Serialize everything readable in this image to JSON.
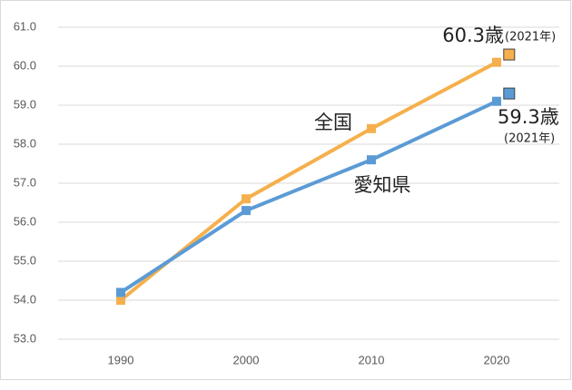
{
  "chart_data": {
    "type": "line",
    "x": [
      1990,
      2000,
      2010,
      2020
    ],
    "xlim": [
      1985,
      2025
    ],
    "xticks": [
      1990,
      2000,
      2010,
      2020
    ],
    "ylim": [
      53,
      61
    ],
    "yticks": [
      {
        "value": 53,
        "label": "53.0"
      },
      {
        "value": 54,
        "label": "54.0"
      },
      {
        "value": 55,
        "label": "55.0"
      },
      {
        "value": 56,
        "label": "56.0"
      },
      {
        "value": 57,
        "label": "57.0"
      },
      {
        "value": 58,
        "label": "58.0"
      },
      {
        "value": 59,
        "label": "59.0"
      },
      {
        "value": 60,
        "label": "60.0"
      },
      {
        "value": 61,
        "label": "61.0"
      }
    ],
    "grid": true,
    "series": [
      {
        "name": "全国",
        "color": "#F5B04D",
        "values": [
          54.0,
          56.6,
          58.4,
          60.1
        ]
      },
      {
        "name": "愛知県",
        "color": "#5B9BD5",
        "values": [
          54.2,
          56.3,
          57.6,
          59.1
        ]
      }
    ],
    "annotations": [
      {
        "x": 2021,
        "value": 60.3,
        "label": "60.3歳",
        "note": "(2021年)",
        "color": "#F5B04D"
      },
      {
        "x": 2021,
        "value": 59.3,
        "label": "59.3歳",
        "note": "(2021年)",
        "color": "#5B9BD5"
      }
    ]
  }
}
